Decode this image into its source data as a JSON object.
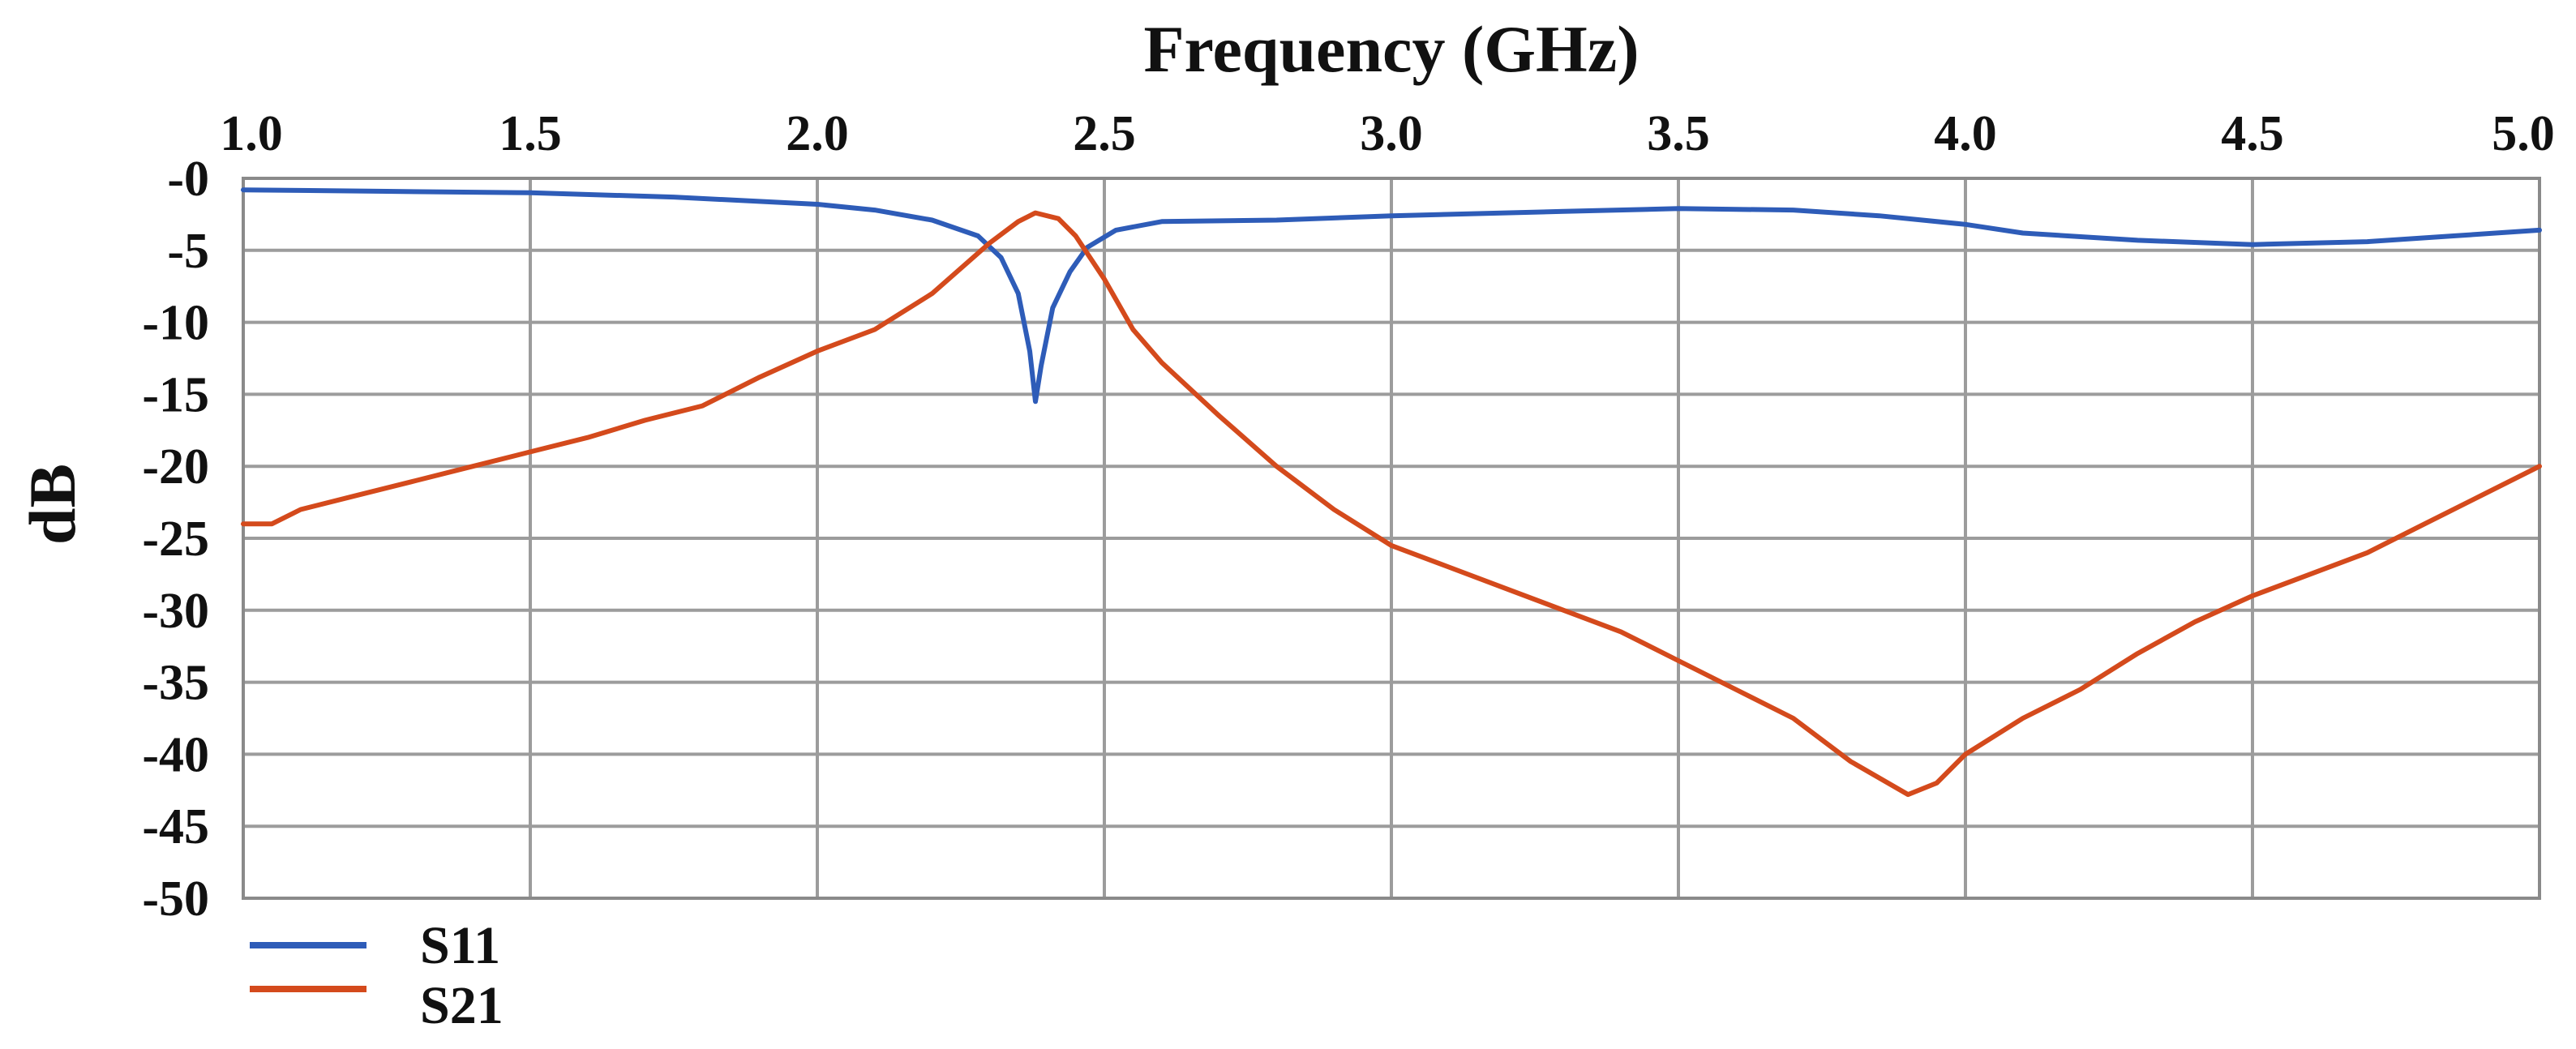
{
  "chart_data": {
    "type": "line",
    "xlabel": "Frequency (GHz)",
    "ylabel": "dB",
    "xlim": [
      1.0,
      5.0
    ],
    "ylim": [
      -50,
      0
    ],
    "x_ticks": [
      "1.0",
      "1.5",
      "2.0",
      "2.5",
      "3.0",
      "3.5",
      "4.0",
      "4.5",
      "5.0"
    ],
    "y_ticks": [
      "-0",
      "-5",
      "-10",
      "-15",
      "-20",
      "-25",
      "-30",
      "-35",
      "-40",
      "-45",
      "-50"
    ],
    "x_axis_position": "top",
    "grid": true,
    "legend_position": "bottom-left",
    "series": [
      {
        "name": "S11",
        "color": "#2e5cb8",
        "x": [
          1.0,
          1.25,
          1.5,
          1.75,
          2.0,
          2.1,
          2.2,
          2.28,
          2.32,
          2.35,
          2.37,
          2.38,
          2.39,
          2.41,
          2.44,
          2.47,
          2.52,
          2.6,
          2.8,
          3.0,
          3.3,
          3.5,
          3.7,
          3.85,
          4.0,
          4.1,
          4.3,
          4.5,
          4.7,
          4.85,
          5.0
        ],
        "y": [
          -0.8,
          -0.9,
          -1.0,
          -1.3,
          -1.8,
          -2.2,
          -2.9,
          -4.0,
          -5.5,
          -8.0,
          -12.0,
          -15.5,
          -13.0,
          -9.0,
          -6.5,
          -4.8,
          -3.6,
          -3.0,
          -2.9,
          -2.6,
          -2.3,
          -2.1,
          -2.2,
          -2.6,
          -3.2,
          -3.8,
          -4.3,
          -4.6,
          -4.4,
          -4.0,
          -3.6
        ]
      },
      {
        "name": "S21",
        "color": "#d44a1c",
        "x": [
          1.0,
          1.05,
          1.1,
          1.2,
          1.3,
          1.4,
          1.5,
          1.6,
          1.7,
          1.8,
          1.9,
          2.0,
          2.1,
          2.2,
          2.3,
          2.35,
          2.38,
          2.42,
          2.45,
          2.5,
          2.55,
          2.6,
          2.7,
          2.8,
          2.9,
          3.0,
          3.1,
          3.2,
          3.3,
          3.4,
          3.5,
          3.6,
          3.7,
          3.8,
          3.9,
          3.95,
          4.0,
          4.1,
          4.2,
          4.3,
          4.4,
          4.5,
          4.6,
          4.7,
          4.8,
          4.9,
          5.0
        ],
        "y": [
          -24.0,
          -24.0,
          -23.0,
          -22.0,
          -21.0,
          -20.0,
          -19.0,
          -18.0,
          -16.8,
          -15.8,
          -13.8,
          -12.0,
          -10.5,
          -8.0,
          -4.5,
          -3.0,
          -2.4,
          -2.8,
          -4.0,
          -7.0,
          -10.5,
          -12.8,
          -16.5,
          -20.0,
          -23.0,
          -25.5,
          -27.0,
          -28.5,
          -30.0,
          -31.5,
          -33.5,
          -35.5,
          -37.5,
          -40.5,
          -42.8,
          -42.0,
          -40.0,
          -37.5,
          -35.5,
          -33.0,
          -30.8,
          -29.0,
          -27.5,
          -26.0,
          -24.0,
          -22.0,
          -20.0
        ]
      }
    ]
  }
}
